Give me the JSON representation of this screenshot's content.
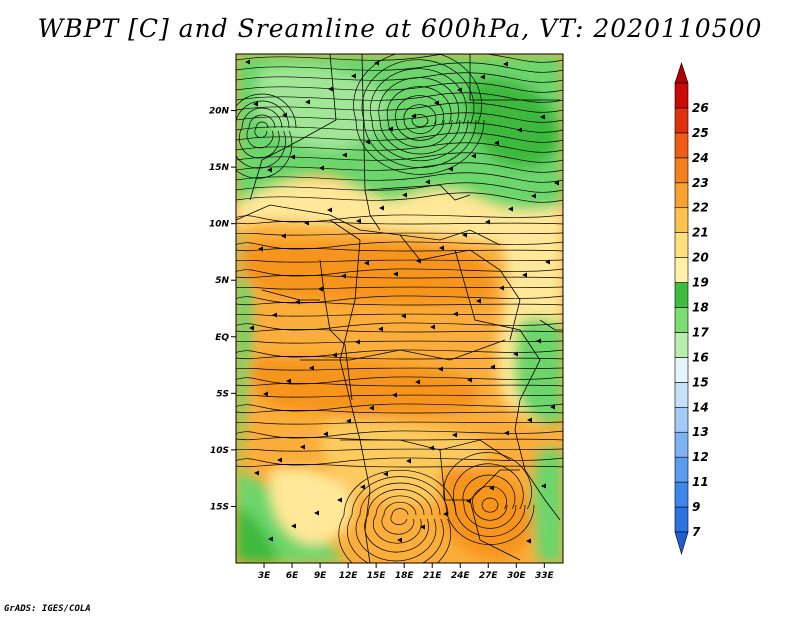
{
  "title": "WBPT [C] and Sreamline at 600hPa, VT: 2020110500",
  "footer": "GrADS: IGES/COLA",
  "map": {
    "lon_ticks": [
      "3E",
      "6E",
      "9E",
      "12E",
      "15E",
      "18E",
      "21E",
      "24E",
      "27E",
      "30E",
      "33E"
    ],
    "lat_ticks": [
      "20N",
      "15N",
      "10N",
      "5N",
      "EQ",
      "5S",
      "10S",
      "15S"
    ],
    "lon_range": [
      0,
      35
    ],
    "lat_range": [
      -20,
      25
    ],
    "colors": {
      "green_dark": "#3dba3d",
      "green_mid": "#6cd66c",
      "green_light": "#a0e696",
      "yellow": "#ffe899",
      "orange_light": "#fdca5f",
      "orange": "#fbae3b",
      "orange_dark": "#f6941f"
    }
  },
  "colorbar": {
    "labels": [
      "7",
      "9",
      "11",
      "12",
      "13",
      "14",
      "15",
      "16",
      "17",
      "18",
      "19",
      "20",
      "21",
      "22",
      "23",
      "24",
      "25",
      "26"
    ],
    "colors": [
      "#2c72e0",
      "#3d86ea",
      "#5a9df0",
      "#7db3f5",
      "#a2cbf8",
      "#c6e2fb",
      "#e6f5fb",
      "#b9eeaf",
      "#7ddc72",
      "#3fbd3f",
      "#fff2a8",
      "#ffe07d",
      "#fdc150",
      "#f9a12e",
      "#f4801c",
      "#ef5d14",
      "#e0300e",
      "#c90a06"
    ],
    "arrow_low": "#1f5fd0",
    "arrow_high": "#b00000"
  }
}
